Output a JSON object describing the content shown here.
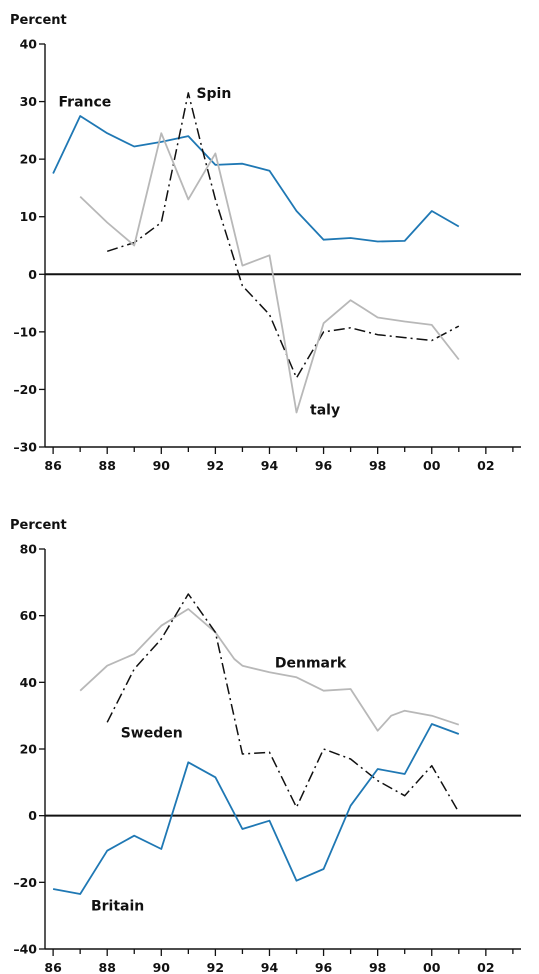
{
  "colors": {
    "blue": "#1f78b4",
    "gray": "#b8b8b8",
    "black": "#111111"
  },
  "chart_data": [
    {
      "type": "line",
      "unit_label": "Percent",
      "ylim": [
        -30,
        40
      ],
      "yticks": [
        -30,
        -20,
        -10,
        0,
        10,
        20,
        30,
        40
      ],
      "ytick_labels": [
        "–30",
        "–20",
        "–10",
        "0",
        "10",
        "20",
        "30",
        "40"
      ],
      "xlim": [
        1985.7,
        2003.3
      ],
      "xticks": [
        1986,
        1988,
        1990,
        1992,
        1994,
        1996,
        1998,
        2000,
        2002
      ],
      "xtick_labels": [
        "86",
        "88",
        "90",
        "92",
        "94",
        "96",
        "98",
        "00",
        "02"
      ],
      "series": [
        {
          "name": "France",
          "style": "solid",
          "color": "#1f78b4",
          "x": [
            1986,
            1987,
            1988,
            1989,
            1990,
            1991,
            1992,
            1993,
            1994,
            1995,
            1996,
            1997,
            1998,
            1999,
            2000,
            2001
          ],
          "y": [
            17.5,
            27.5,
            24.5,
            22.2,
            23.0,
            24.0,
            19.0,
            19.2,
            18.0,
            11.0,
            6.0,
            6.3,
            5.7,
            5.8,
            11.0,
            8.3
          ]
        },
        {
          "name": "Spin",
          "style": "dashdot",
          "color": "#111111",
          "x": [
            1988,
            1989,
            1990,
            1991,
            1991.5,
            1992,
            1993,
            1994,
            1995,
            1996,
            1997,
            1998,
            1999,
            2000,
            2001
          ],
          "y": [
            4.0,
            5.5,
            9.0,
            31.5,
            22.0,
            13.0,
            -2.0,
            -7.0,
            -18.0,
            -10.0,
            -9.3,
            -10.5,
            -11.0,
            -11.5,
            -9.0
          ]
        },
        {
          "name": "taly",
          "style": "solid",
          "color": "#b8b8b8",
          "x": [
            1987,
            1988,
            1989,
            1990,
            1991,
            1992,
            1993,
            1994,
            1994.5,
            1995,
            1996,
            1997,
            1997.5,
            1998,
            1999,
            2000,
            2001
          ],
          "y": [
            13.5,
            9.0,
            5.0,
            24.5,
            13.0,
            21.0,
            1.5,
            3.3,
            -10.0,
            -24.0,
            -8.5,
            -4.5,
            -6.0,
            -7.5,
            -8.2,
            -8.8,
            -14.8
          ]
        }
      ],
      "labels": [
        {
          "text": "France",
          "x": 1986.2,
          "y": 30.0
        },
        {
          "text": "Spin",
          "x": 1991.3,
          "y": 31.5
        },
        {
          "text": "taly",
          "x": 1995.5,
          "y": -23.5
        }
      ]
    },
    {
      "type": "line",
      "unit_label": "Percent",
      "ylim": [
        -40,
        80
      ],
      "yticks": [
        -40,
        -20,
        0,
        20,
        40,
        60,
        80
      ],
      "ytick_labels": [
        "–40",
        "–20",
        "0",
        "20",
        "40",
        "60",
        "80"
      ],
      "xlim": [
        1985.7,
        2003.3
      ],
      "xticks": [
        1986,
        1988,
        1990,
        1992,
        1994,
        1996,
        1998,
        2000,
        2002
      ],
      "xtick_labels": [
        "86",
        "88",
        "90",
        "92",
        "94",
        "96",
        "98",
        "00",
        "02"
      ],
      "series": [
        {
          "name": "Denmark",
          "style": "solid",
          "color": "#b8b8b8",
          "x": [
            1987,
            1988,
            1989,
            1990,
            1991,
            1992,
            1992.7,
            1993,
            1994,
            1995,
            1996,
            1997,
            1998,
            1998.5,
            1999,
            2000,
            2001
          ],
          "y": [
            37.5,
            45.0,
            48.5,
            57.0,
            62.0,
            55.0,
            47.0,
            45.0,
            43.0,
            41.5,
            37.5,
            38.0,
            25.5,
            30.0,
            31.5,
            30.0,
            27.3
          ]
        },
        {
          "name": "Sweden",
          "style": "dashdot",
          "color": "#111111",
          "x": [
            1988,
            1989,
            1990,
            1991,
            1992,
            1993,
            1994,
            1995,
            1996,
            1997,
            1998,
            1999,
            2000,
            2001
          ],
          "y": [
            28.0,
            44.0,
            53.0,
            66.5,
            55.0,
            18.5,
            19.0,
            2.5,
            20.0,
            17.0,
            10.5,
            6.0,
            15.0,
            1.0
          ]
        },
        {
          "name": "Britain",
          "style": "solid",
          "color": "#1f78b4",
          "x": [
            1986,
            1987,
            1988,
            1989,
            1990,
            1991,
            1992,
            1993,
            1994,
            1995,
            1996,
            1997,
            1998,
            1999,
            2000,
            2001
          ],
          "y": [
            -22.0,
            -23.5,
            -10.5,
            -6.0,
            -10.0,
            16.0,
            11.5,
            -4.0,
            -1.5,
            -19.5,
            -16.0,
            3.0,
            14.0,
            12.5,
            27.5,
            24.5
          ]
        }
      ],
      "labels": [
        {
          "text": "Denmark",
          "x": 1994.2,
          "y": 46.0
        },
        {
          "text": "Sweden",
          "x": 1988.5,
          "y": 25.0
        },
        {
          "text": "Britain",
          "x": 1987.4,
          "y": -27.0
        }
      ]
    }
  ]
}
